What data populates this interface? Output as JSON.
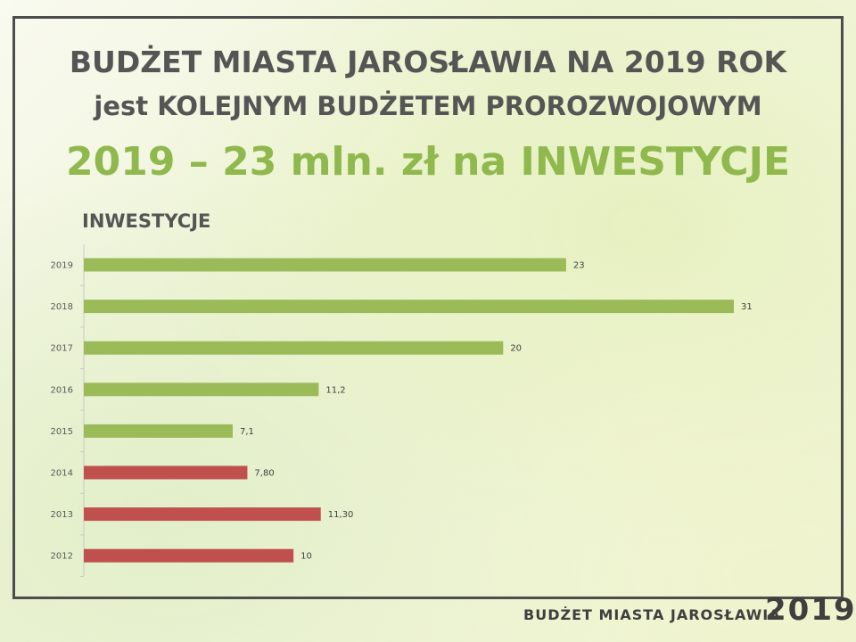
{
  "slide": {
    "title_line1": "BUDŻET MIASTA JAROSŁAWIA NA 2019 ROK",
    "title_line2": "jest KOLEJNYM BUDŻETEM PROROZWOJOWYM",
    "title_line3": "2019 – 23 mln. zł na INWESTYCJE"
  },
  "footer": {
    "text": "BUDŻET MIASTA JAROSŁAWIA",
    "year": "2019"
  },
  "colors": {
    "green": "#9bbb59",
    "red": "#c0504d"
  },
  "chart_data": {
    "type": "bar",
    "orientation": "horizontal",
    "title": "INWESTYCJE",
    "categories": [
      "2019",
      "2018",
      "2017",
      "2016",
      "2015",
      "2014",
      "2013",
      "2012"
    ],
    "values": [
      23,
      31,
      20,
      11.2,
      7.1,
      7.8,
      11.3,
      10
    ],
    "data_labels": [
      "23",
      "31",
      "20",
      "11,2",
      "7,1",
      "7,80",
      "11,30",
      "10"
    ],
    "bar_colors": [
      "#9bbb59",
      "#9bbb59",
      "#9bbb59",
      "#9bbb59",
      "#9bbb59",
      "#c0504d",
      "#c0504d",
      "#c0504d"
    ],
    "xlim": [
      0,
      31
    ],
    "grid": false,
    "legend": "none"
  }
}
